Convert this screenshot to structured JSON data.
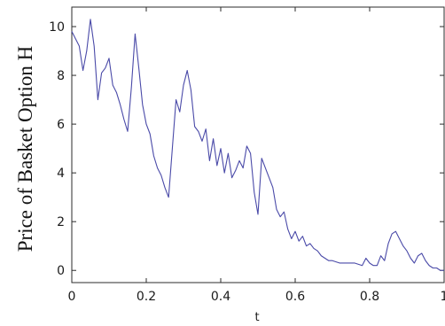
{
  "chart_data": {
    "type": "line",
    "title": "",
    "xlabel": "t",
    "ylabel": "Price of Basket Option H",
    "xlim": [
      0,
      1
    ],
    "ylim": [
      -0.5,
      10.8
    ],
    "grid": false,
    "x_ticks": [
      0,
      0.2,
      0.4,
      0.6,
      0.8,
      1
    ],
    "x_tick_labels": [
      "0",
      "0.2",
      "0.4",
      "0.6",
      "0.8",
      "1"
    ],
    "y_ticks": [
      0,
      2,
      4,
      6,
      8,
      10
    ],
    "y_tick_labels": [
      "0",
      "2",
      "4",
      "6",
      "8",
      "10"
    ],
    "color": "#4a4aa8",
    "series": [
      {
        "x": [
          0,
          0.01,
          0.02,
          0.03,
          0.04,
          0.05,
          0.06,
          0.07,
          0.08,
          0.09,
          0.1,
          0.11,
          0.12,
          0.13,
          0.14,
          0.15,
          0.16,
          0.17,
          0.18,
          0.19,
          0.2,
          0.21,
          0.22,
          0.23,
          0.24,
          0.25,
          0.26,
          0.27,
          0.28,
          0.29,
          0.3,
          0.31,
          0.32,
          0.33,
          0.34,
          0.35,
          0.36,
          0.37,
          0.38,
          0.39,
          0.4,
          0.41,
          0.42,
          0.43,
          0.44,
          0.45,
          0.46,
          0.47,
          0.48,
          0.49,
          0.5,
          0.51,
          0.52,
          0.53,
          0.54,
          0.55,
          0.56,
          0.57,
          0.58,
          0.59,
          0.6,
          0.61,
          0.62,
          0.63,
          0.64,
          0.65,
          0.66,
          0.67,
          0.68,
          0.69,
          0.7,
          0.72,
          0.74,
          0.76,
          0.78,
          0.79,
          0.8,
          0.81,
          0.82,
          0.83,
          0.84,
          0.85,
          0.86,
          0.87,
          0.88,
          0.89,
          0.9,
          0.91,
          0.92,
          0.93,
          0.94,
          0.95,
          0.96,
          0.97,
          0.98,
          0.99,
          1
        ],
        "y": [
          9.8,
          9.5,
          9.2,
          8.2,
          9.0,
          10.3,
          9.2,
          7.0,
          8.1,
          8.3,
          8.7,
          7.6,
          7.3,
          6.8,
          6.2,
          5.7,
          7.5,
          9.7,
          8.3,
          6.8,
          6.0,
          5.6,
          4.7,
          4.2,
          3.9,
          3.4,
          3.0,
          5.0,
          7.0,
          6.5,
          7.6,
          8.2,
          7.4,
          5.9,
          5.7,
          5.3,
          5.8,
          4.5,
          5.4,
          4.3,
          5.0,
          4.0,
          4.8,
          3.8,
          4.1,
          4.5,
          4.2,
          5.1,
          4.8,
          3.2,
          2.3,
          4.6,
          4.2,
          3.8,
          3.4,
          2.5,
          2.2,
          2.4,
          1.7,
          1.3,
          1.6,
          1.2,
          1.4,
          1.0,
          1.1,
          0.9,
          0.8,
          0.6,
          0.5,
          0.4,
          0.4,
          0.3,
          0.3,
          0.3,
          0.2,
          0.5,
          0.3,
          0.2,
          0.2,
          0.6,
          0.4,
          1.1,
          1.5,
          1.6,
          1.3,
          1.0,
          0.8,
          0.5,
          0.3,
          0.6,
          0.7,
          0.4,
          0.2,
          0.1,
          0.1,
          0.0,
          0.0
        ]
      }
    ]
  }
}
